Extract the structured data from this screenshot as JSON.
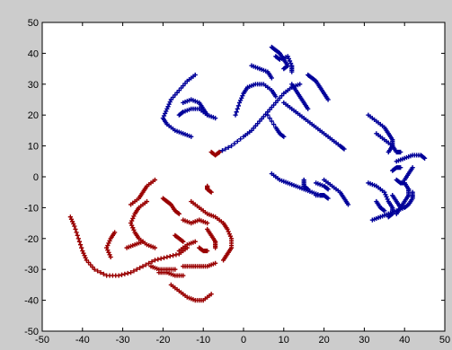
{
  "chart_data": {
    "type": "scatter",
    "title": "",
    "xlabel": "",
    "ylabel": "",
    "xlim": [
      -50,
      50
    ],
    "ylim": [
      -50,
      50
    ],
    "xticks": [
      -50,
      -40,
      -30,
      -20,
      -10,
      0,
      10,
      20,
      30,
      40,
      50
    ],
    "yticks": [
      -50,
      -40,
      -30,
      -20,
      -10,
      0,
      10,
      20,
      30,
      40,
      50
    ],
    "grid": false,
    "legend": "none",
    "background": "#cccccc",
    "plot_background": "#ffffff",
    "series": [
      {
        "color": "#000099",
        "marker": "+",
        "strokes": [
          [
            [
              -12,
              33
            ],
            [
              -14,
              31
            ],
            [
              -16,
              28
            ],
            [
              -18,
              25
            ],
            [
              -19,
              22
            ],
            [
              -20,
              19
            ],
            [
              -19,
              17
            ],
            [
              -17,
              15
            ],
            [
              -15,
              14
            ],
            [
              -13,
              13
            ]
          ],
          [
            [
              -15,
              24
            ],
            [
              -13,
              25
            ],
            [
              -11,
              24
            ],
            [
              -10,
              22
            ],
            [
              -9,
              20
            ]
          ],
          [
            [
              -16,
              20
            ],
            [
              -15,
              21
            ],
            [
              -13,
              22
            ],
            [
              -11,
              22
            ],
            [
              -9,
              20
            ],
            [
              -7,
              19
            ]
          ],
          [
            [
              -2,
              20
            ],
            [
              -1,
              24
            ],
            [
              0,
              27
            ],
            [
              1,
              29
            ],
            [
              3,
              30
            ],
            [
              5,
              30
            ],
            [
              7,
              28
            ],
            [
              8,
              26
            ]
          ],
          [
            [
              2,
              36
            ],
            [
              4,
              35
            ],
            [
              6,
              34
            ],
            [
              7,
              32
            ]
          ],
          [
            [
              7,
              42
            ],
            [
              8,
              41
            ],
            [
              9,
              40
            ],
            [
              10,
              38
            ],
            [
              11,
              36
            ],
            [
              10,
              35
            ]
          ],
          [
            [
              8,
              39
            ],
            [
              9,
              38
            ],
            [
              11,
              39
            ],
            [
              12,
              36
            ],
            [
              12,
              34
            ]
          ],
          [
            [
              -6,
              8
            ],
            [
              -3,
              10
            ],
            [
              0,
              13
            ],
            [
              2,
              15
            ],
            [
              4,
              18
            ],
            [
              6,
              21
            ],
            [
              8,
              24
            ],
            [
              10,
              27
            ],
            [
              12,
              29
            ],
            [
              14,
              30
            ]
          ],
          [
            [
              6,
              20
            ],
            [
              8,
              16
            ],
            [
              9,
              14
            ],
            [
              10,
              13
            ]
          ],
          [
            [
              10,
              24
            ],
            [
              12,
              22
            ],
            [
              14,
              20
            ],
            [
              16,
              18
            ],
            [
              18,
              16
            ],
            [
              20,
              14
            ],
            [
              22,
              12
            ],
            [
              24,
              10
            ],
            [
              25,
              9
            ]
          ],
          [
            [
              16,
              33
            ],
            [
              17,
              32
            ],
            [
              18,
              31
            ],
            [
              19,
              29
            ],
            [
              20,
              27
            ],
            [
              21,
              25
            ]
          ],
          [
            [
              12,
              30
            ],
            [
              13,
              28
            ],
            [
              14,
              26
            ],
            [
              15,
              24
            ],
            [
              16,
              22
            ]
          ],
          [
            [
              7,
              1
            ],
            [
              9,
              -1
            ],
            [
              11,
              -2
            ],
            [
              13,
              -3
            ],
            [
              15,
              -4
            ],
            [
              17,
              -5
            ],
            [
              19,
              -6
            ],
            [
              20,
              -6
            ]
          ],
          [
            [
              15,
              -1
            ],
            [
              15,
              -3
            ],
            [
              16,
              -4
            ]
          ],
          [
            [
              18,
              -2
            ],
            [
              20,
              -3
            ],
            [
              21,
              -4
            ]
          ],
          [
            [
              18,
              -6
            ],
            [
              20,
              -6
            ],
            [
              21,
              -7
            ]
          ],
          [
            [
              20,
              -1
            ],
            [
              22,
              -3
            ],
            [
              24,
              -5
            ],
            [
              25,
              -7
            ],
            [
              26,
              -9
            ]
          ],
          [
            [
              31,
              20
            ],
            [
              33,
              18
            ],
            [
              35,
              16
            ],
            [
              36,
              14
            ],
            [
              37,
              12
            ],
            [
              37,
              10
            ],
            [
              36,
              8
            ]
          ],
          [
            [
              33,
              14
            ],
            [
              35,
              12
            ],
            [
              37,
              10
            ],
            [
              38,
              8
            ],
            [
              39,
              8
            ]
          ],
          [
            [
              38,
              5
            ],
            [
              40,
              6
            ],
            [
              42,
              7
            ],
            [
              44,
              7
            ],
            [
              45,
              6
            ]
          ],
          [
            [
              37,
              2
            ],
            [
              38,
              3
            ],
            [
              39,
              3
            ]
          ],
          [
            [
              38,
              -1
            ],
            [
              39,
              -2
            ],
            [
              40,
              -2
            ]
          ],
          [
            [
              31,
              -2
            ],
            [
              33,
              -3
            ],
            [
              35,
              -5
            ],
            [
              36,
              -8
            ],
            [
              37,
              -10
            ],
            [
              37,
              -12
            ],
            [
              36,
              -13
            ]
          ],
          [
            [
              33,
              -8
            ],
            [
              34,
              -10
            ],
            [
              35,
              -11
            ]
          ],
          [
            [
              32,
              -14
            ],
            [
              34,
              -13
            ],
            [
              36,
              -12
            ],
            [
              38,
              -11
            ],
            [
              40,
              -10
            ],
            [
              41,
              -9
            ],
            [
              42,
              -7
            ],
            [
              42,
              -5
            ]
          ],
          [
            [
              37,
              -6
            ],
            [
              38,
              -8
            ],
            [
              39,
              -10
            ]
          ],
          [
            [
              40,
              -2
            ],
            [
              41,
              -4
            ],
            [
              41,
              -6
            ],
            [
              40,
              -8
            ],
            [
              39,
              -10
            ],
            [
              38,
              -12
            ]
          ],
          [
            [
              42,
              3
            ],
            [
              41,
              1
            ],
            [
              40,
              -1
            ]
          ]
        ]
      },
      {
        "color": "#990000",
        "marker": "+",
        "strokes": [
          [
            [
              -43,
              -13
            ],
            [
              -42,
              -16
            ],
            [
              -41,
              -20
            ],
            [
              -40,
              -24
            ],
            [
              -39,
              -27
            ],
            [
              -37,
              -30
            ],
            [
              -34,
              -32
            ],
            [
              -31,
              -32
            ],
            [
              -28,
              -31
            ],
            [
              -25,
              -29
            ],
            [
              -22,
              -27
            ],
            [
              -19,
              -26
            ],
            [
              -16,
              -25
            ],
            [
              -14,
              -23
            ]
          ],
          [
            [
              -32,
              -18
            ],
            [
              -33,
              -20
            ],
            [
              -34,
              -23
            ],
            [
              -33,
              -26
            ]
          ],
          [
            [
              -29,
              -23
            ],
            [
              -27,
              -22
            ],
            [
              -25,
              -21
            ]
          ],
          [
            [
              -24,
              -8
            ],
            [
              -26,
              -10
            ],
            [
              -27,
              -12
            ],
            [
              -28,
              -15
            ],
            [
              -27,
              -18
            ],
            [
              -26,
              -20
            ],
            [
              -24,
              -22
            ],
            [
              -22,
              -23
            ]
          ],
          [
            [
              -22,
              -1
            ],
            [
              -24,
              -3
            ],
            [
              -25,
              -5
            ],
            [
              -26,
              -7
            ],
            [
              -28,
              -9
            ]
          ],
          [
            [
              -20,
              -7
            ],
            [
              -19,
              -8
            ],
            [
              -18,
              -9
            ],
            [
              -17,
              -11
            ],
            [
              -16,
              -12
            ]
          ],
          [
            [
              -15,
              -14
            ],
            [
              -13,
              -15
            ],
            [
              -11,
              -14
            ],
            [
              -9,
              -15
            ]
          ],
          [
            [
              -17,
              -19
            ],
            [
              -16,
              -20
            ],
            [
              -15,
              -21
            ]
          ],
          [
            [
              -21,
              -31
            ],
            [
              -19,
              -31
            ],
            [
              -17,
              -32
            ],
            [
              -15,
              -32
            ]
          ],
          [
            [
              -23,
              -29
            ],
            [
              -21,
              -30
            ],
            [
              -19,
              -30
            ],
            [
              -17,
              -30
            ]
          ],
          [
            [
              -15,
              -29
            ],
            [
              -13,
              -29
            ],
            [
              -11,
              -29
            ],
            [
              -9,
              -29
            ],
            [
              -7,
              -28
            ]
          ],
          [
            [
              -18,
              -35
            ],
            [
              -16,
              -37
            ],
            [
              -14,
              -39
            ],
            [
              -12,
              -40
            ],
            [
              -10,
              -40
            ],
            [
              -8,
              -38
            ]
          ],
          [
            [
              -13,
              -8
            ],
            [
              -11,
              -10
            ],
            [
              -9,
              -12
            ],
            [
              -7,
              -13
            ],
            [
              -5,
              -15
            ],
            [
              -4,
              -17
            ],
            [
              -3,
              -20
            ],
            [
              -3,
              -23
            ],
            [
              -4,
              -25
            ],
            [
              -5,
              -27
            ]
          ],
          [
            [
              -9,
              -17
            ],
            [
              -8,
              -19
            ],
            [
              -7,
              -21
            ],
            [
              -7,
              -23
            ]
          ],
          [
            [
              -11,
              -23
            ],
            [
              -10,
              -24
            ],
            [
              -9,
              -24
            ]
          ],
          [
            [
              -9,
              -3
            ],
            [
              -9,
              -4
            ],
            [
              -8,
              -5
            ]
          ],
          [
            [
              -8,
              8
            ],
            [
              -7,
              7
            ],
            [
              -6,
              8
            ]
          ],
          [
            [
              -16,
              -24
            ],
            [
              -14,
              -22
            ],
            [
              -12,
              -21
            ]
          ]
        ]
      }
    ]
  }
}
